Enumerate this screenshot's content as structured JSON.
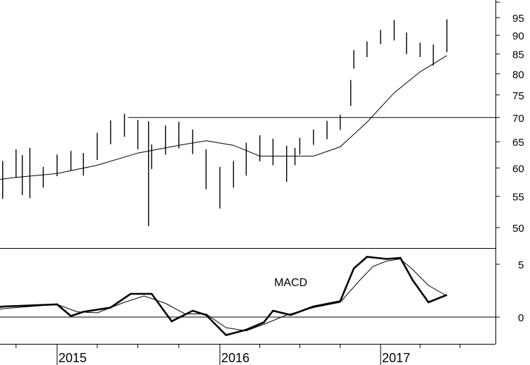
{
  "chart_data": [
    {
      "type": "bar",
      "subtype": "ohlc-price",
      "scale": "log",
      "ylim": [
        50,
        100
      ],
      "y_ticks": [
        50,
        55,
        60,
        65,
        70,
        75,
        80,
        85,
        90,
        95
      ],
      "y_tick_labels": [
        "50",
        "55",
        "60",
        "65",
        "70",
        "75",
        "80",
        "85",
        "90",
        "95"
      ],
      "resistance_line": 70,
      "series": [
        {
          "kind": "price-bars",
          "x": [
            "2014-07-01",
            "2014-08-01",
            "2014-09-01",
            "2014-10-01",
            "2014-10-15",
            "2014-11-01",
            "2014-12-01",
            "2015-01-01",
            "2015-02-01",
            "2015-03-01",
            "2015-04-01",
            "2015-05-01",
            "2015-06-01",
            "2015-07-01",
            "2015-07-25",
            "2015-08-01",
            "2015-09-01",
            "2015-10-01",
            "2015-11-01",
            "2015-12-01",
            "2016-01-01",
            "2016-02-01",
            "2016-03-01",
            "2016-04-01",
            "2016-05-01",
            "2016-06-01",
            "2016-06-20",
            "2016-07-01",
            "2016-08-01",
            "2016-09-01",
            "2016-10-01",
            "2016-10-25",
            "2016-11-01",
            "2016-12-01",
            "2017-01-01",
            "2017-02-01",
            "2017-03-01",
            "2017-04-01",
            "2017-05-01",
            "2017-06-01"
          ],
          "high": [
            60.5,
            62.2,
            61.3,
            63.5,
            62.4,
            63.8,
            60.2,
            62.5,
            63.2,
            62.8,
            66.8,
            69.4,
            70.8,
            69.5,
            69.2,
            64.5,
            68.3,
            69.1,
            67.5,
            63.5,
            60.2,
            61.3,
            64.8,
            66.3,
            65.6,
            64.2,
            63.8,
            65.8,
            67.5,
            69.3,
            70.6,
            78.5,
            86.0,
            88.3,
            91.5,
            94.3,
            90.8,
            88.0,
            87.5,
            94.5
          ],
          "low": [
            58.5,
            59.5,
            54.6,
            58.2,
            55.2,
            54.7,
            56.5,
            58.5,
            59.5,
            58.6,
            61.5,
            64.5,
            66.0,
            63.5,
            50.2,
            59.8,
            62.5,
            63.7,
            62.6,
            56.2,
            53.0,
            56.5,
            58.6,
            61.2,
            60.5,
            57.5,
            60.5,
            62.5,
            64.4,
            65.5,
            67.4,
            72.5,
            81.3,
            84.2,
            87.6,
            88.6,
            85.0,
            84.2,
            82.0,
            85.5
          ]
        },
        {
          "kind": "moving-average",
          "x": [
            "2014-07-01",
            "2014-10-01",
            "2015-01-01",
            "2015-04-01",
            "2015-07-01",
            "2015-10-01",
            "2015-12-01",
            "2016-02-01",
            "2016-04-01",
            "2016-06-01",
            "2016-08-01",
            "2016-10-01",
            "2016-12-01",
            "2017-02-01",
            "2017-04-01",
            "2017-06-01"
          ],
          "y": [
            57.4,
            58.3,
            59.0,
            60.5,
            62.8,
            64.3,
            65.2,
            64.3,
            62.2,
            62.2,
            62.2,
            64.0,
            69.0,
            75.5,
            80.5,
            84.6
          ]
        }
      ]
    },
    {
      "type": "line",
      "annotation": "MACD",
      "ylim": [
        -2,
        7
      ],
      "y_ticks": [
        0,
        5
      ],
      "y_tick_labels": [
        "0",
        "5"
      ],
      "x_tick_labels": [
        "2015",
        "2016",
        "2017"
      ],
      "x_ticks": [
        "2015-01-01",
        "2016-01-01",
        "2017-01-01"
      ],
      "series": [
        {
          "x": [
            "2014-07-01",
            "2014-09-01",
            "2014-11-01",
            "2015-01-01",
            "2015-02-01",
            "2015-03-01",
            "2015-05-01",
            "2015-06-15",
            "2015-08-01",
            "2015-09-15",
            "2015-11-01",
            "2015-12-01",
            "2016-01-15",
            "2016-03-01",
            "2016-04-10",
            "2016-05-01",
            "2016-06-10",
            "2016-08-01",
            "2016-10-01",
            "2016-11-01",
            "2016-12-01",
            "2017-01-15",
            "2017-02-15",
            "2017-03-15",
            "2017-04-20",
            "2017-06-01"
          ],
          "y": [
            0.5,
            1.0,
            1.1,
            1.2,
            0.1,
            0.5,
            0.9,
            2.2,
            2.2,
            -0.4,
            0.6,
            0.2,
            -1.7,
            -1.2,
            -0.5,
            0.6,
            0.2,
            1.0,
            1.5,
            4.6,
            5.7,
            5.5,
            5.6,
            3.5,
            1.4,
            2.1
          ]
        },
        {
          "x": [
            "2014-07-01",
            "2014-09-01",
            "2014-11-01",
            "2015-01-01",
            "2015-02-15",
            "2015-04-01",
            "2015-06-01",
            "2015-07-15",
            "2015-09-01",
            "2015-10-15",
            "2015-12-01",
            "2016-01-15",
            "2016-03-01",
            "2016-04-15",
            "2016-06-01",
            "2016-08-01",
            "2016-10-01",
            "2016-11-15",
            "2016-12-15",
            "2017-01-15",
            "2017-02-15",
            "2017-03-15",
            "2017-04-20",
            "2017-06-01"
          ],
          "y": [
            0.2,
            0.8,
            1.0,
            1.2,
            0.5,
            0.4,
            1.4,
            2.0,
            1.3,
            0.3,
            0.3,
            -1.0,
            -1.3,
            -0.6,
            0.2,
            0.9,
            1.4,
            3.5,
            4.8,
            5.3,
            5.5,
            4.5,
            3.0,
            2.0
          ]
        }
      ]
    }
  ]
}
